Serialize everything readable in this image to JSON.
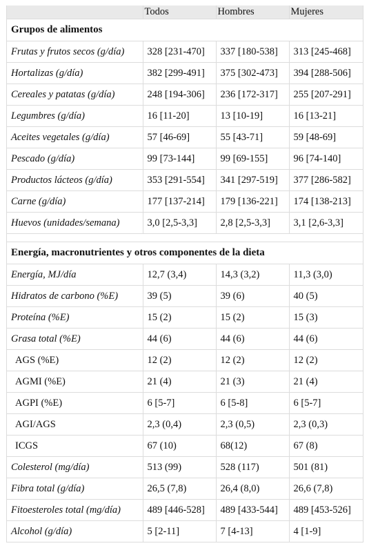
{
  "header": [
    "",
    "Todos",
    "Hombres",
    "Mujeres"
  ],
  "sections": [
    {
      "title": "Grupos de alimentos",
      "rows": [
        {
          "label": "Frutas y frutos secos (g/día)",
          "style": "italic",
          "values": [
            "328 [231-470]",
            "337 [180-538]",
            "313 [245-468]"
          ]
        },
        {
          "label": "Hortalizas (g/día)",
          "style": "italic",
          "values": [
            "382 [299-491]",
            "375 [302-473]",
            "394 [288-506]"
          ]
        },
        {
          "label": "Cereales y patatas (g/día)",
          "style": "italic",
          "values": [
            "248 [194-306]",
            "236 [172-317]",
            "255 [207-291]"
          ]
        },
        {
          "label": "Legumbres (g/día)",
          "style": "italic",
          "values": [
            "16 [11-20]",
            "13 [10-19]",
            "16 [13-21]"
          ]
        },
        {
          "label": "Aceites vegetales (g/día)",
          "style": "italic",
          "values": [
            "57 [46-69]",
            "55 [43-71]",
            "59 [48-69]"
          ]
        },
        {
          "label": "Pescado (g/día)",
          "style": "italic",
          "values": [
            "99 [73-144]",
            "99 [69-155]",
            "96 [74-140]"
          ]
        },
        {
          "label": "Productos lácteos (g/día)",
          "style": "italic",
          "values": [
            "353 [291-554]",
            "341 [297-519]",
            "377 [286-582]"
          ]
        },
        {
          "label": "Carne (g/día)",
          "style": "italic",
          "values": [
            "177 [137-214]",
            "179 [136-221]",
            "174 [138-213]"
          ]
        },
        {
          "label": "Huevos (unidades/semana)",
          "style": "italic",
          "values": [
            "3,0 [2,5-3,3]",
            "2,8 [2,5-3,3]",
            "3,1 [2,6-3,3]"
          ]
        }
      ]
    },
    {
      "title": "Energía, macronutrientes y otros componentes de la dieta",
      "rows": [
        {
          "label": "Energía, MJ/día",
          "style": "italic",
          "values": [
            "12,7 (3,4)",
            "14,3 (3,2)",
            "11,3 (3,0)"
          ]
        },
        {
          "label": "Hidratos de carbono (%E)",
          "style": "italic",
          "values": [
            "39 (5)",
            "39 (6)",
            "40 (5)"
          ]
        },
        {
          "label": "Proteína (%E)",
          "style": "italic",
          "values": [
            "15 (2)",
            "15 (2)",
            "15 (3)"
          ]
        },
        {
          "label": "Grasa total (%E)",
          "style": "italic",
          "values": [
            "44 (6)",
            "44 (6)",
            "44 (6)"
          ]
        },
        {
          "label": "AGS (%E)",
          "style": "plain",
          "values": [
            "12 (2)",
            "12 (2)",
            "12 (2)"
          ]
        },
        {
          "label": "AGMI (%E)",
          "style": "plain",
          "values": [
            "21 (4)",
            "21 (3)",
            "21 (4)"
          ]
        },
        {
          "label": "AGPI (%E)",
          "style": "plain",
          "values": [
            "6 [5-7]",
            "6 [5-8]",
            "6 [5-7]"
          ]
        },
        {
          "label": "AGI/AGS",
          "style": "plain",
          "values": [
            "2,3 (0,4)",
            "2,3 (0,5)",
            "2,3 (0,3)"
          ]
        },
        {
          "label": "ICGS",
          "style": "plain",
          "values": [
            "67 (10)",
            "68(12)",
            "67 (8)"
          ]
        },
        {
          "label": "Colesterol (mg/día)",
          "style": "italic",
          "values": [
            "513 (99)",
            "528 (117)",
            "501 (81)"
          ]
        },
        {
          "label": "Fibra total (g/día)",
          "style": "italic",
          "values": [
            "26,5 (7,8)",
            "26,4 (8,0)",
            "26,6 (7,8)"
          ]
        },
        {
          "label": "Fitoesteroles total (mg/día)",
          "style": "italic",
          "values": [
            "489 [446-528]",
            "489 [433-544]",
            "489 [453-526]"
          ]
        },
        {
          "label": "Alcohol (g/día)",
          "style": "italic",
          "values": [
            "5 [2-11]",
            "7 [4-13]",
            "4 [1-9]"
          ]
        }
      ]
    }
  ]
}
